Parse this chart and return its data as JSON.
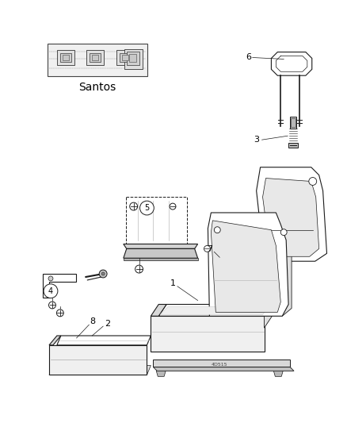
{
  "background_color": "#ffffff",
  "fig_width": 4.38,
  "fig_height": 5.33,
  "dpi": 100,
  "line_color": "#1a1a1a",
  "gray_fill": "#e8e8e8",
  "dark_gray": "#aaaaaa"
}
